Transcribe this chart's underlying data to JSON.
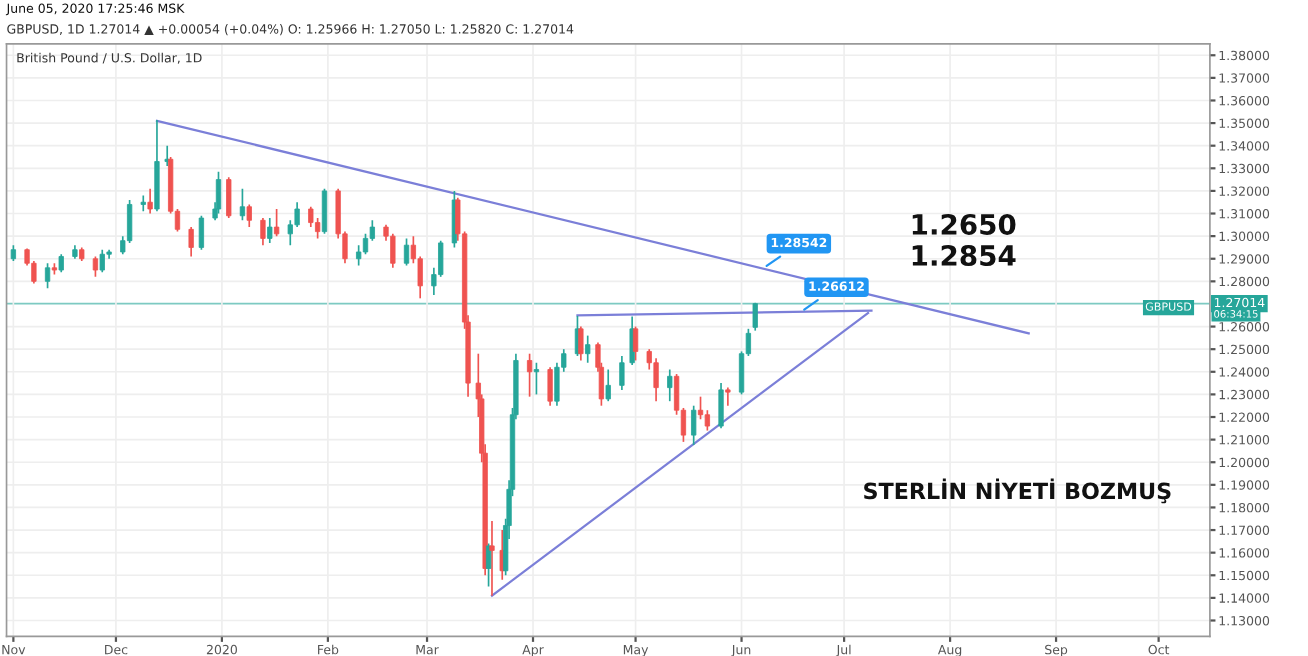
{
  "chart_data": {
    "type": "candlestick",
    "title": "British Pound / U.S. Dollar, 1D",
    "subtitle": "GBPUSD, 1D 1.27014 ▲ +0.00054 (+0.04%) O: 1.25966 H: 1.27050 L: 1.25820 C: 1.27014",
    "x": [
      "2019-11-01",
      "2019-11-05",
      "2019-11-07",
      "2019-11-11",
      "2019-11-13",
      "2019-11-15",
      "2019-11-19",
      "2019-11-21",
      "2019-11-25",
      "2019-11-27",
      "2019-11-29",
      "2019-12-03",
      "2019-12-05",
      "2019-12-09",
      "2019-12-11",
      "2019-12-13",
      "2019-12-16",
      "2019-12-17",
      "2019-12-19",
      "2019-12-23",
      "2019-12-26",
      "2019-12-30",
      "2019-12-31",
      "2020-01-03",
      "2020-01-07",
      "2020-01-09",
      "2020-01-13",
      "2020-01-15",
      "2020-01-17",
      "2020-01-21",
      "2020-01-23",
      "2020-01-27",
      "2020-01-29",
      "2020-01-31",
      "2020-02-04",
      "2020-02-06",
      "2020-02-10",
      "2020-02-12",
      "2020-02-14",
      "2020-02-18",
      "2020-02-20",
      "2020-02-24",
      "2020-02-26",
      "2020-02-28",
      "2020-03-03",
      "2020-03-05",
      "2020-03-09",
      "2020-03-10",
      "2020-03-12",
      "2020-03-13",
      "2020-03-16",
      "2020-03-17",
      "2020-03-18",
      "2020-03-19",
      "2020-03-20",
      "2020-03-23",
      "2020-03-24",
      "2020-03-25",
      "2020-03-26",
      "2020-03-27",
      "2020-03-31",
      "2020-04-02",
      "2020-04-06",
      "2020-04-08",
      "2020-04-10",
      "2020-04-14",
      "2020-04-15",
      "2020-04-17",
      "2020-04-20",
      "2020-04-21",
      "2020-04-23",
      "2020-04-27",
      "2020-04-30",
      "2020-05-01",
      "2020-05-05",
      "2020-05-07",
      "2020-05-11",
      "2020-05-13",
      "2020-05-15",
      "2020-05-18",
      "2020-05-20",
      "2020-05-22",
      "2020-05-26",
      "2020-05-28",
      "2020-06-01",
      "2020-06-03",
      "2020-06-05"
    ],
    "ohlc": [
      [
        1.29,
        1.296,
        1.289,
        1.294
      ],
      [
        1.294,
        1.2945,
        1.287,
        1.288
      ],
      [
        1.288,
        1.289,
        1.279,
        1.28
      ],
      [
        1.28,
        1.288,
        1.277,
        1.286
      ],
      [
        1.286,
        1.288,
        1.283,
        1.285
      ],
      [
        1.285,
        1.292,
        1.284,
        1.291
      ],
      [
        1.291,
        1.296,
        1.29,
        1.294
      ],
      [
        1.294,
        1.295,
        1.289,
        1.29
      ],
      [
        1.29,
        1.291,
        1.282,
        1.285
      ],
      [
        1.285,
        1.294,
        1.284,
        1.292
      ],
      [
        1.292,
        1.294,
        1.29,
        1.293
      ],
      [
        1.293,
        1.3,
        1.292,
        1.298
      ],
      [
        1.298,
        1.316,
        1.297,
        1.314
      ],
      [
        1.314,
        1.318,
        1.311,
        1.315
      ],
      [
        1.315,
        1.321,
        1.31,
        1.312
      ],
      [
        1.312,
        1.3514,
        1.311,
        1.333
      ],
      [
        1.333,
        1.34,
        1.331,
        1.334
      ],
      [
        1.334,
        1.335,
        1.31,
        1.311
      ],
      [
        1.311,
        1.312,
        1.302,
        1.303
      ],
      [
        1.303,
        1.304,
        1.291,
        1.295
      ],
      [
        1.295,
        1.309,
        1.294,
        1.308
      ],
      [
        1.308,
        1.315,
        1.307,
        1.312
      ],
      [
        1.312,
        1.3285,
        1.31,
        1.325
      ],
      [
        1.325,
        1.326,
        1.308,
        1.309
      ],
      [
        1.309,
        1.321,
        1.307,
        1.313
      ],
      [
        1.313,
        1.314,
        1.304,
        1.307
      ],
      [
        1.307,
        1.308,
        1.296,
        1.299
      ],
      [
        1.299,
        1.308,
        1.297,
        1.304
      ],
      [
        1.304,
        1.312,
        1.3,
        1.301
      ],
      [
        1.301,
        1.307,
        1.296,
        1.305
      ],
      [
        1.305,
        1.315,
        1.304,
        1.312
      ],
      [
        1.312,
        1.313,
        1.304,
        1.306
      ],
      [
        1.306,
        1.308,
        1.299,
        1.302
      ],
      [
        1.302,
        1.321,
        1.301,
        1.32
      ],
      [
        1.32,
        1.321,
        1.299,
        1.301
      ],
      [
        1.301,
        1.302,
        1.288,
        1.29
      ],
      [
        1.29,
        1.296,
        1.287,
        1.293
      ],
      [
        1.293,
        1.301,
        1.292,
        1.299
      ],
      [
        1.299,
        1.307,
        1.298,
        1.304
      ],
      [
        1.304,
        1.305,
        1.298,
        1.3
      ],
      [
        1.3,
        1.301,
        1.286,
        1.288
      ],
      [
        1.288,
        1.299,
        1.287,
        1.296
      ],
      [
        1.296,
        1.3,
        1.288,
        1.29
      ],
      [
        1.29,
        1.291,
        1.2725,
        1.278
      ],
      [
        1.278,
        1.286,
        1.274,
        1.283
      ],
      [
        1.283,
        1.298,
        1.282,
        1.297
      ],
      [
        1.297,
        1.32,
        1.295,
        1.316
      ],
      [
        1.316,
        1.317,
        1.298,
        1.301
      ],
      [
        1.301,
        1.302,
        1.259,
        1.262
      ],
      [
        1.262,
        1.265,
        1.229,
        1.235
      ],
      [
        1.235,
        1.248,
        1.22,
        1.228
      ],
      [
        1.228,
        1.23,
        1.2,
        1.204
      ],
      [
        1.204,
        1.208,
        1.15,
        1.153
      ],
      [
        1.153,
        1.164,
        1.145,
        1.163
      ],
      [
        1.163,
        1.174,
        1.1409,
        1.161
      ],
      [
        1.161,
        1.17,
        1.148,
        1.152
      ],
      [
        1.152,
        1.175,
        1.15,
        1.172
      ],
      [
        1.172,
        1.192,
        1.166,
        1.188
      ],
      [
        1.188,
        1.224,
        1.185,
        1.221
      ],
      [
        1.221,
        1.248,
        1.219,
        1.245
      ],
      [
        1.245,
        1.248,
        1.229,
        1.24
      ],
      [
        1.24,
        1.244,
        1.23,
        1.241
      ],
      [
        1.241,
        1.242,
        1.225,
        1.227
      ],
      [
        1.227,
        1.244,
        1.225,
        1.242
      ],
      [
        1.242,
        1.25,
        1.24,
        1.248
      ],
      [
        1.248,
        1.2647,
        1.247,
        1.259
      ],
      [
        1.259,
        1.26,
        1.245,
        1.248
      ],
      [
        1.248,
        1.256,
        1.244,
        1.252
      ],
      [
        1.252,
        1.253,
        1.24,
        1.242
      ],
      [
        1.242,
        1.244,
        1.225,
        1.228
      ],
      [
        1.228,
        1.241,
        1.227,
        1.234
      ],
      [
        1.234,
        1.247,
        1.232,
        1.244
      ],
      [
        1.244,
        1.2645,
        1.243,
        1.259
      ],
      [
        1.259,
        1.26,
        1.245,
        1.249
      ],
      [
        1.249,
        1.25,
        1.241,
        1.244
      ],
      [
        1.244,
        1.246,
        1.227,
        1.233
      ],
      [
        1.233,
        1.241,
        1.227,
        1.238
      ],
      [
        1.238,
        1.239,
        1.221,
        1.223
      ],
      [
        1.223,
        1.224,
        1.209,
        1.212
      ],
      [
        1.212,
        1.225,
        1.2076,
        1.223
      ],
      [
        1.223,
        1.229,
        1.219,
        1.221
      ],
      [
        1.221,
        1.223,
        1.214,
        1.216
      ],
      [
        1.216,
        1.235,
        1.215,
        1.232
      ],
      [
        1.232,
        1.233,
        1.225,
        1.231
      ],
      [
        1.231,
        1.249,
        1.23,
        1.248
      ],
      [
        1.248,
        1.259,
        1.247,
        1.257
      ],
      [
        1.25966,
        1.2705,
        1.2582,
        1.27014
      ]
    ],
    "colors": [
      "#26a69a",
      "#ef5350",
      "#ef5350",
      "#26a69a",
      "#ef5350",
      "#26a69a",
      "#26a69a",
      "#ef5350",
      "#ef5350",
      "#26a69a",
      "#26a69a",
      "#26a69a",
      "#26a69a",
      "#26a69a",
      "#ef5350",
      "#26a69a",
      "#26a69a",
      "#ef5350",
      "#ef5350",
      "#ef5350",
      "#26a69a",
      "#26a69a",
      "#26a69a",
      "#ef5350",
      "#26a69a",
      "#ef5350",
      "#ef5350",
      "#26a69a",
      "#ef5350",
      "#26a69a",
      "#26a69a",
      "#ef5350",
      "#ef5350",
      "#26a69a",
      "#ef5350",
      "#ef5350",
      "#26a69a",
      "#26a69a",
      "#26a69a",
      "#ef5350",
      "#ef5350",
      "#26a69a",
      "#ef5350",
      "#ef5350",
      "#26a69a",
      "#26a69a",
      "#26a69a",
      "#ef5350",
      "#ef5350",
      "#ef5350",
      "#ef5350",
      "#ef5350",
      "#ef5350",
      "#26a69a",
      "#ef5350",
      "#ef5350",
      "#26a69a",
      "#26a69a",
      "#26a69a",
      "#26a69a",
      "#ef5350",
      "#26a69a",
      "#ef5350",
      "#26a69a",
      "#26a69a",
      "#26a69a",
      "#ef5350",
      "#26a69a",
      "#ef5350",
      "#ef5350",
      "#26a69a",
      "#26a69a",
      "#26a69a",
      "#ef5350",
      "#ef5350",
      "#ef5350",
      "#26a69a",
      "#ef5350",
      "#ef5350",
      "#26a69a",
      "#ef5350",
      "#ef5350",
      "#26a69a",
      "#ef5350",
      "#26a69a",
      "#26a69a",
      "#26a69a"
    ],
    "series": [
      {
        "type": "line",
        "color": "#7b7fd8",
        "x": [
          "2019-12-13",
          "2020-08-24"
        ],
        "values": [
          1.351,
          1.257
        ]
      },
      {
        "type": "line",
        "color": "#7b7fd8",
        "x": [
          "2020-04-14",
          "2020-07-09"
        ],
        "values": [
          1.265,
          1.267
        ]
      },
      {
        "type": "line",
        "color": "#7b7fd8",
        "x": [
          "2020-03-20",
          "2020-07-08"
        ],
        "values": [
          1.141,
          1.266
        ]
      }
    ],
    "ref_lines": [
      {
        "axis": "y",
        "value": 1.27014,
        "label": "1.27014",
        "color": "#26a69a"
      }
    ],
    "annotations": [
      "June 05, 2020 17:25:46 MSK",
      "1.2650\n1.2854",
      "STERLİN NİYETİ BOZMUŞ",
      "GBPUSD",
      "06:34:15",
      {
        "text": "1.28542",
        "x": "2020-06-07",
        "y": 1.28542
      },
      {
        "text": "1.26612",
        "x": "2020-06-18",
        "y": 1.26612
      }
    ],
    "xlim": [
      "2019-10-30",
      "2020-10-16"
    ],
    "xticks": [
      {
        "value": "2019-11-01",
        "label": "Nov"
      },
      {
        "value": "2019-12-01",
        "label": "Dec"
      },
      {
        "value": "2020-01-01",
        "label": "2020"
      },
      {
        "value": "2020-02-01",
        "label": "Feb"
      },
      {
        "value": "2020-03-01",
        "label": "Mar"
      },
      {
        "value": "2020-04-01",
        "label": "Apr"
      },
      {
        "value": "2020-05-01",
        "label": "May"
      },
      {
        "value": "2020-06-01",
        "label": "Jun"
      },
      {
        "value": "2020-07-01",
        "label": "Jul"
      },
      {
        "value": "2020-08-01",
        "label": "Aug"
      },
      {
        "value": "2020-09-01",
        "label": "Sep"
      },
      {
        "value": "2020-10-01",
        "label": "Oct"
      }
    ],
    "ylim": [
      1.123,
      1.385
    ],
    "yticks": [
      {
        "value": 1.13,
        "label": "1.13000"
      },
      {
        "value": 1.14,
        "label": "1.14000"
      },
      {
        "value": 1.15,
        "label": "1.15000"
      },
      {
        "value": 1.16,
        "label": "1.16000"
      },
      {
        "value": 1.17,
        "label": "1.17000"
      },
      {
        "value": 1.18,
        "label": "1.18000"
      },
      {
        "value": 1.19,
        "label": "1.19000"
      },
      {
        "value": 1.2,
        "label": "1.20000"
      },
      {
        "value": 1.21,
        "label": "1.21000"
      },
      {
        "value": 1.22,
        "label": "1.22000"
      },
      {
        "value": 1.23,
        "label": "1.23000"
      },
      {
        "value": 1.24,
        "label": "1.24000"
      },
      {
        "value": 1.25,
        "label": "1.25000"
      },
      {
        "value": 1.26,
        "label": "1.26000"
      },
      {
        "value": 1.28,
        "label": "1.28000"
      },
      {
        "value": 1.29,
        "label": "1.29000"
      },
      {
        "value": 1.3,
        "label": "1.30000"
      },
      {
        "value": 1.31,
        "label": "1.31000"
      },
      {
        "value": 1.32,
        "label": "1.32000"
      },
      {
        "value": 1.33,
        "label": "1.33000"
      },
      {
        "value": 1.34,
        "label": "1.34000"
      },
      {
        "value": 1.35,
        "label": "1.35000"
      },
      {
        "value": 1.36,
        "label": "1.36000"
      },
      {
        "value": 1.37,
        "label": "1.37000"
      },
      {
        "value": 1.38,
        "label": "1.38000"
      }
    ],
    "grid": true
  }
}
